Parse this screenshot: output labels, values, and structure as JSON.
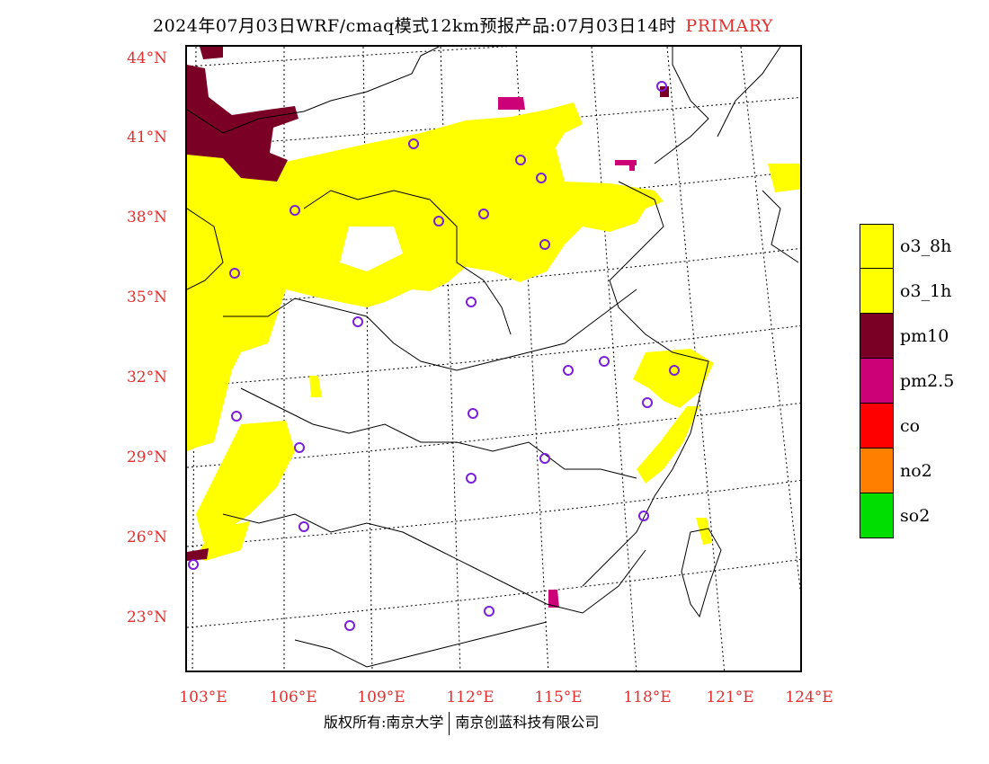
{
  "title": {
    "main": "2024年07月03日WRF/cmaq模式12km预报产品:07月03日14时",
    "tag": "PRIMARY"
  },
  "axes": {
    "lat_labels": [
      "44°N",
      "41°N",
      "38°N",
      "35°N",
      "32°N",
      "29°N",
      "26°N",
      "23°N"
    ],
    "lon_labels": [
      "103°E",
      "106°E",
      "109°E",
      "112°E",
      "115°E",
      "118°E",
      "121°E",
      "124°E"
    ]
  },
  "legend": [
    {
      "label": "o3_8h",
      "color": "#ffff00"
    },
    {
      "label": "o3_1h",
      "color": "#ffff00"
    },
    {
      "label": "pm10",
      "color": "#7a0026"
    },
    {
      "label": "pm2.5",
      "color": "#cc0077"
    },
    {
      "label": "co",
      "color": "#ff0000"
    },
    {
      "label": "no2",
      "color": "#ff8000"
    },
    {
      "label": "so2",
      "color": "#00dd00"
    }
  ],
  "footer": {
    "left": "版权所有:南京大学",
    "right": "南京创蓝科技有限公司"
  },
  "colors": {
    "accent": "#e03030",
    "station_marker": "#7b1fd8"
  }
}
